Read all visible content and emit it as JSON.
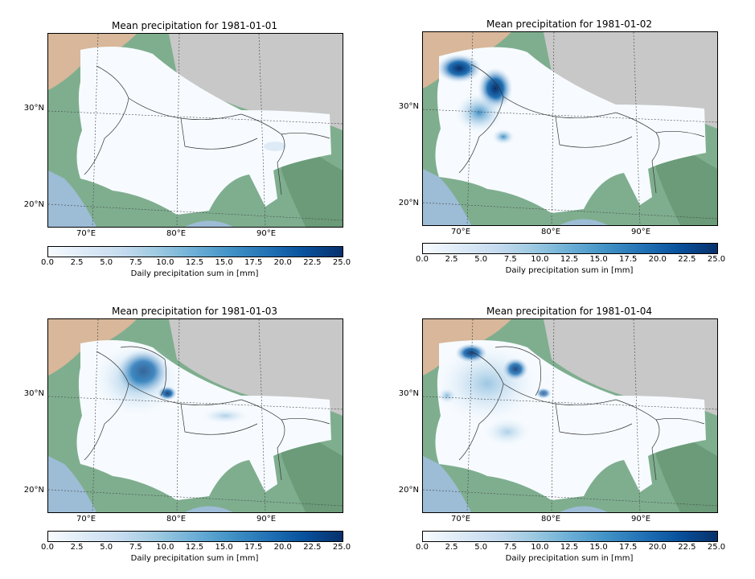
{
  "panels": [
    {
      "title": "Mean precipitation for 1981-01-01"
    },
    {
      "title": "Mean precipitation for 1981-01-02"
    },
    {
      "title": "Mean precipitation for 1981-01-03"
    },
    {
      "title": "Mean precipitation for 1981-01-04"
    }
  ],
  "lat_labels": [
    "30°N",
    "20°N"
  ],
  "lon_labels": [
    "70°E",
    "80°E",
    "90°E"
  ],
  "colorbar": {
    "ticks": [
      "0.0",
      "2.5",
      "5.0",
      "7.5",
      "10.0",
      "12.5",
      "15.0",
      "17.5",
      "20.0",
      "22.5",
      "25.0"
    ],
    "label": "Daily precipitation sum in [mm]",
    "colormap": "Blues",
    "range": [
      0,
      25
    ]
  },
  "colors": {
    "ocean": "#9dbcd6",
    "mountains": "#c8c8c8",
    "desert": "#d8b79a",
    "lowland": "#7fae8f",
    "mask": "#f7fbff",
    "heavy_rain": "#08306b"
  }
}
